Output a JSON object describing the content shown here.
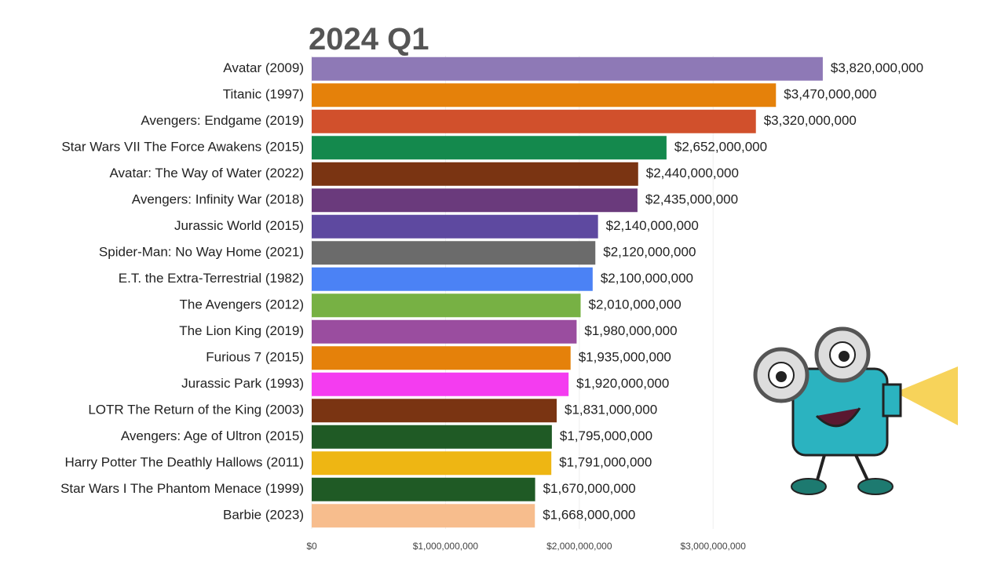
{
  "chart_data": {
    "type": "bar",
    "orientation": "horizontal",
    "title": "2024 Q1",
    "categories": [
      "Avatar (2009)",
      "Titanic (1997)",
      "Avengers: Endgame (2019)",
      "Star Wars VII The Force Awakens (2015)",
      "Avatar: The Way of Water (2022)",
      "Avengers: Infinity War (2018)",
      "Jurassic World (2015)",
      "Spider-Man: No Way Home (2021)",
      "E.T. the Extra-Terrestrial (1982)",
      "The Avengers (2012)",
      "The Lion King (2019)",
      "Furious 7 (2015)",
      "Jurassic Park (1993)",
      "LOTR The Return of the King (2003)",
      "Avengers: Age of Ultron (2015)",
      "Harry Potter The Deathly Hallows (2011)",
      "Star Wars I The Phantom Menace (1999)",
      "Barbie (2023)"
    ],
    "values": [
      3820000000,
      3470000000,
      3320000000,
      2652000000,
      2440000000,
      2435000000,
      2140000000,
      2120000000,
      2100000000,
      2010000000,
      1980000000,
      1935000000,
      1920000000,
      1831000000,
      1795000000,
      1791000000,
      1670000000,
      1668000000
    ],
    "value_labels": [
      "$3,820,000,000",
      "$3,470,000,000",
      "$3,320,000,000",
      "$2,652,000,000",
      "$2,440,000,000",
      "$2,435,000,000",
      "$2,140,000,000",
      "$2,120,000,000",
      "$2,100,000,000",
      "$2,010,000,000",
      "$1,980,000,000",
      "$1,935,000,000",
      "$1,920,000,000",
      "$1,831,000,000",
      "$1,795,000,000",
      "$1,791,000,000",
      "$1,670,000,000",
      "$1,668,000,000"
    ],
    "colors": [
      "#8e79b6",
      "#e5810a",
      "#d1502c",
      "#14894d",
      "#7a3412",
      "#6a3a7c",
      "#5e49a0",
      "#6b6b6b",
      "#4b82f5",
      "#77b144",
      "#9a4d9f",
      "#e5810a",
      "#f43cf0",
      "#7a3412",
      "#1f5a25",
      "#eeb613",
      "#1f5a25",
      "#f7bd8d"
    ],
    "xlim": [
      0,
      5000000000
    ],
    "xticks": [
      {
        "value": 0,
        "label": "$0"
      },
      {
        "value": 1000000000,
        "label": "$1,000,000,000"
      },
      {
        "value": 2000000000,
        "label": "$2,000,000,000"
      },
      {
        "value": 3000000000,
        "label": "$3,000,000,000"
      }
    ],
    "grid": true
  }
}
